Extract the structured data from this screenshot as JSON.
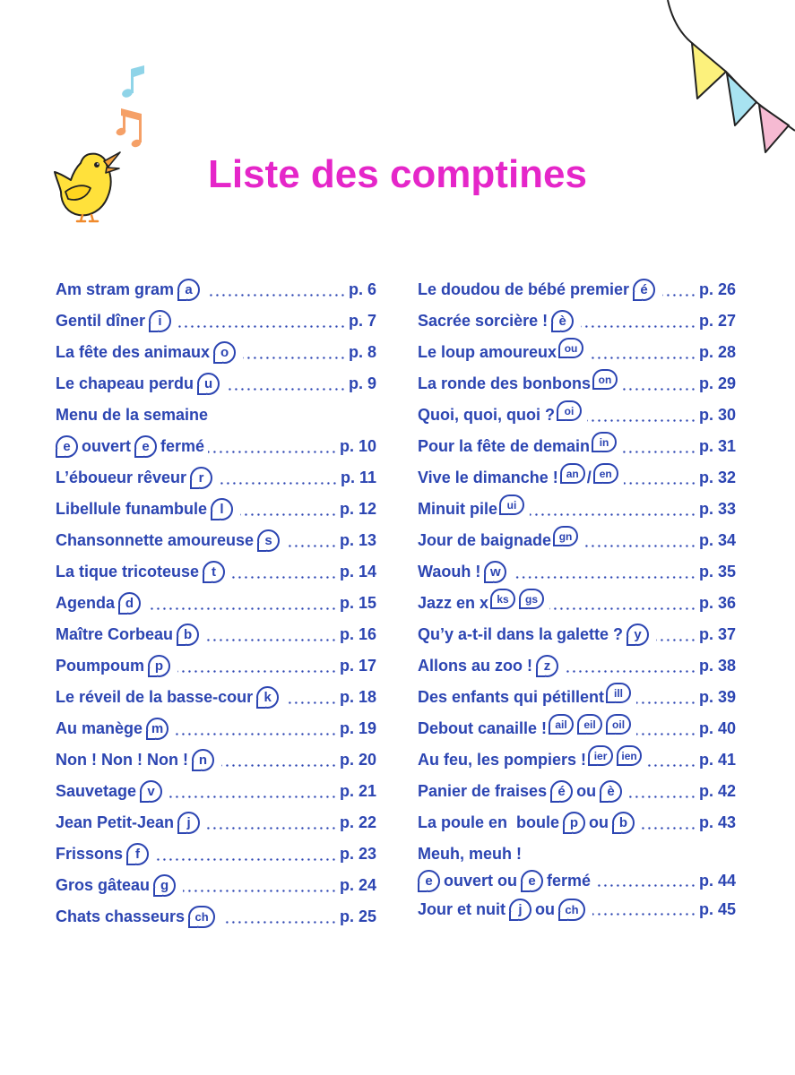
{
  "title": "Liste des comptines",
  "colors": {
    "title": "#e526c9",
    "text": "#2c45b2"
  },
  "icons": [
    "chick-icon",
    "music-note-icon",
    "bunting-flags-icon"
  ],
  "columns": [
    {
      "entries": [
        {
          "parts": [
            {
              "text": "Am stram gram"
            },
            {
              "sound": "a"
            }
          ],
          "page": "p. 6"
        },
        {
          "parts": [
            {
              "text": "Gentil dîner"
            },
            {
              "sound": "i"
            }
          ],
          "page": "p. 7"
        },
        {
          "parts": [
            {
              "text": "La fête des animaux"
            },
            {
              "sound": "o"
            }
          ],
          "page": "p. 8"
        },
        {
          "parts": [
            {
              "text": "Le chapeau perdu"
            },
            {
              "sound": "u"
            }
          ],
          "page": "p. 9"
        },
        {
          "parts": [
            {
              "text": "Menu de la semaine"
            }
          ]
        },
        {
          "parts": [
            {
              "sound": "e"
            },
            {
              "text": "ouvert"
            },
            {
              "sound": "e"
            },
            {
              "text": "fermé"
            }
          ],
          "page": "p. 10"
        },
        {
          "parts": [
            {
              "text": "L’éboueur rêveur"
            },
            {
              "sound": "r"
            }
          ],
          "page": "p. 11"
        },
        {
          "parts": [
            {
              "text": "Libellule funambule"
            },
            {
              "sound": "l"
            }
          ],
          "page": "p. 12"
        },
        {
          "parts": [
            {
              "text": "Chansonnette amoureuse"
            },
            {
              "sound": "s"
            }
          ],
          "page": "p. 13"
        },
        {
          "parts": [
            {
              "text": "La tique tricoteuse"
            },
            {
              "sound": "t"
            }
          ],
          "page": "p. 14"
        },
        {
          "parts": [
            {
              "text": "Agenda"
            },
            {
              "sound": "d"
            }
          ],
          "page": "p. 15"
        },
        {
          "parts": [
            {
              "text": "Maître Corbeau"
            },
            {
              "sound": "b"
            }
          ],
          "page": "p. 16"
        },
        {
          "parts": [
            {
              "text": "Poumpoum"
            },
            {
              "sound": "p"
            }
          ],
          "page": "p. 17"
        },
        {
          "parts": [
            {
              "text": "Le réveil de la basse-cour"
            },
            {
              "sound": "k"
            }
          ],
          "page": "p. 18"
        },
        {
          "parts": [
            {
              "text": "Au manège"
            },
            {
              "sound": "m"
            }
          ],
          "page": "p. 19"
        },
        {
          "parts": [
            {
              "text": "Non ! Non ! Non !"
            },
            {
              "sound": "n"
            }
          ],
          "page": "p. 20"
        },
        {
          "parts": [
            {
              "text": "Sauvetage"
            },
            {
              "sound": "v"
            }
          ],
          "page": "p. 21"
        },
        {
          "parts": [
            {
              "text": "Jean Petit-Jean"
            },
            {
              "sound": "j"
            }
          ],
          "page": "p. 22"
        },
        {
          "parts": [
            {
              "text": "Frissons"
            },
            {
              "sound": "f"
            }
          ],
          "page": "p. 23"
        },
        {
          "parts": [
            {
              "text": "Gros gâteau"
            },
            {
              "sound": "g"
            }
          ],
          "page": "p. 24"
        },
        {
          "parts": [
            {
              "text": "Chats chasseurs"
            },
            {
              "sound": "ch"
            }
          ],
          "page": "p. 25"
        }
      ]
    },
    {
      "entries": [
        {
          "parts": [
            {
              "text": "Le doudou de bébé premier"
            },
            {
              "sound": "é"
            }
          ],
          "page": "p. 26"
        },
        {
          "parts": [
            {
              "text": "Sacrée sorcière !"
            },
            {
              "sound": "è"
            }
          ],
          "page": "p. 27"
        },
        {
          "parts": [
            {
              "text": "Le loup amoureux"
            },
            {
              "sound": "ou"
            }
          ],
          "page": "p. 28"
        },
        {
          "parts": [
            {
              "text": "La ronde des bonbons"
            },
            {
              "sound": "on"
            }
          ],
          "page": "p. 29"
        },
        {
          "parts": [
            {
              "text": "Quoi, quoi, quoi ?"
            },
            {
              "sound": "oi"
            }
          ],
          "page": "p. 30"
        },
        {
          "parts": [
            {
              "text": "Pour la fête de demain"
            },
            {
              "sound": "in"
            }
          ],
          "page": "p. 31"
        },
        {
          "parts": [
            {
              "text": "Vive le dimanche !"
            },
            {
              "sound": "an"
            },
            {
              "text": "/"
            },
            {
              "sound": "en"
            }
          ],
          "page": "p. 32"
        },
        {
          "parts": [
            {
              "text": "Minuit pile"
            },
            {
              "sound": "ui"
            }
          ],
          "page": "p. 33"
        },
        {
          "parts": [
            {
              "text": "Jour de baignade"
            },
            {
              "sound": "gn"
            }
          ],
          "page": "p. 34"
        },
        {
          "parts": [
            {
              "text": "Waouh !"
            },
            {
              "sound": "w"
            }
          ],
          "page": "p. 35"
        },
        {
          "parts": [
            {
              "text": "Jazz en x"
            },
            {
              "sound": "ks"
            },
            {
              "sound": "gs"
            }
          ],
          "page": "p. 36"
        },
        {
          "parts": [
            {
              "text": "Qu’y a-t-il dans la galette ?"
            },
            {
              "sound": "y"
            }
          ],
          "page": "p. 37"
        },
        {
          "parts": [
            {
              "text": "Allons au zoo !"
            },
            {
              "sound": "z"
            }
          ],
          "page": "p. 38"
        },
        {
          "parts": [
            {
              "text": "Des enfants qui pétillent"
            },
            {
              "sound": "ill"
            }
          ],
          "page": "p. 39"
        },
        {
          "parts": [
            {
              "text": "Debout canaille !"
            },
            {
              "sound": "ail"
            },
            {
              "sound": "eil"
            },
            {
              "sound": "oil"
            }
          ],
          "page": "p. 40"
        },
        {
          "parts": [
            {
              "text": "Au feu, les pompiers !"
            },
            {
              "sound": "ier"
            },
            {
              "sound": "ien"
            }
          ],
          "page": "p. 41"
        },
        {
          "parts": [
            {
              "text": "Panier de fraises"
            },
            {
              "sound": "é"
            },
            {
              "text": "ou"
            },
            {
              "sound": "è"
            }
          ],
          "page": "p. 42"
        },
        {
          "parts": [
            {
              "text": "La poule en  boule"
            },
            {
              "sound": "p"
            },
            {
              "text": "ou"
            },
            {
              "sound": "b"
            }
          ],
          "page": "p. 43"
        },
        {
          "parts": [
            {
              "text": "Meuh, meuh !"
            }
          ]
        },
        {
          "parts": [
            {
              "sound": "e"
            },
            {
              "text": "ouvert ou"
            },
            {
              "sound": "e"
            },
            {
              "text": "fermé"
            }
          ],
          "page": "p. 44"
        },
        {
          "parts": [
            {
              "text": "Jour et nuit"
            },
            {
              "sound": "j"
            },
            {
              "text": "ou"
            },
            {
              "sound": "ch"
            }
          ],
          "page": "p. 45"
        }
      ]
    }
  ]
}
